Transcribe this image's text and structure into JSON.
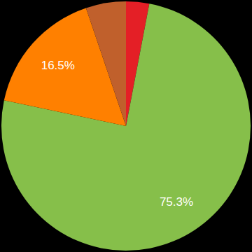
{
  "chart_data": {
    "type": "pie",
    "values": [
      3.0,
      75.3,
      16.5,
      5.2
    ],
    "value_labels": [
      null,
      "75.3%",
      "16.5%",
      null
    ],
    "colors": [
      "#e41f26",
      "#86bf4a",
      "#ff8000",
      "#c0602c"
    ],
    "data_labels": true
  }
}
